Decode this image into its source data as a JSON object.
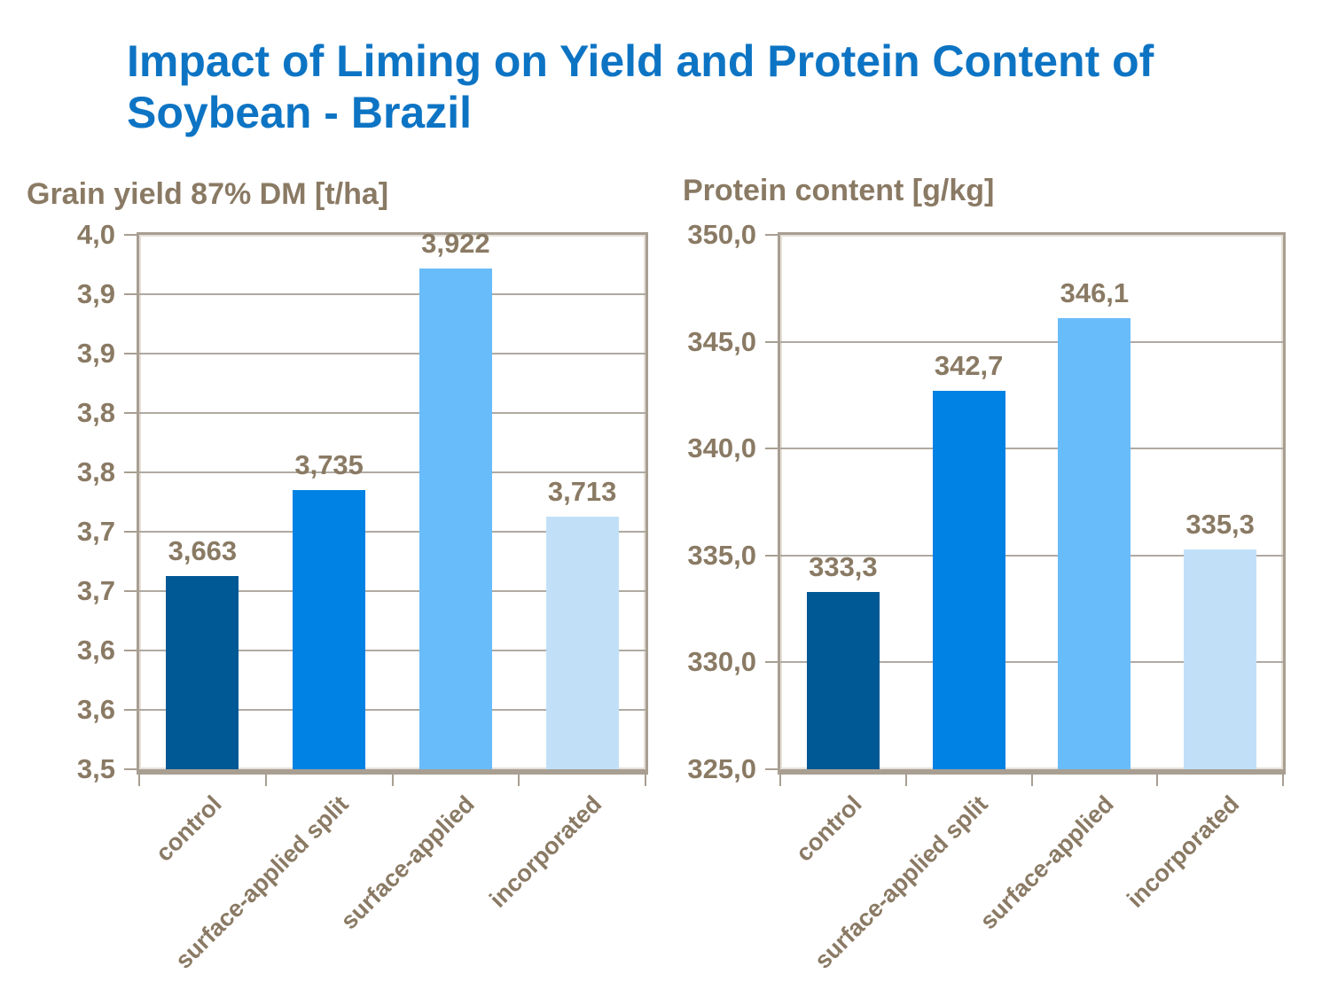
{
  "slide": {
    "title_line1": "Impact of Liming on Yield and Protein Content of",
    "title_line2": "Soybean - Brazil"
  },
  "colors": {
    "title_blue": "#0D74C4",
    "label_brown": "#8A7A64",
    "frame_tan": "#A89F92",
    "frame_highlight": "#E6E0D8",
    "gridline_gray": "#AFAAA2",
    "bar_control": "#005894",
    "bar_surface_applied_split": "#0082E4",
    "bar_surface_applied": "#69BCFA",
    "bar_incorporated": "#C1E0F8"
  },
  "chart_data": [
    {
      "type": "bar",
      "title": "Grain yield 87% DM [t/ha]",
      "categories": [
        "control",
        "surface-applied split",
        "surface-applied",
        "incorporated"
      ],
      "values": [
        3.663,
        3.735,
        3.922,
        3.713
      ],
      "value_labels": [
        "3,663",
        "3,735",
        "3,922",
        "3,713"
      ],
      "ylim": [
        3.5,
        3.95
      ],
      "ytick_labels_bottom_to_top": [
        "3,5",
        "3,6",
        "3,6",
        "3,7",
        "3,7",
        "3,8",
        "3,8",
        "3,9",
        "3,9",
        "4,0"
      ],
      "grid": true,
      "legend": "none",
      "bar_colors": [
        "#005894",
        "#0082E4",
        "#69BCFA",
        "#C1E0F8"
      ]
    },
    {
      "type": "bar",
      "title": "Protein content [g/kg]",
      "categories": [
        "control",
        "surface-applied split",
        "surface-applied",
        "incorporated"
      ],
      "values": [
        333.3,
        342.7,
        346.1,
        335.3
      ],
      "value_labels": [
        "333,3",
        "342,7",
        "346,1",
        "335,3"
      ],
      "ylim": [
        325.0,
        350.0
      ],
      "ytick_labels_bottom_to_top": [
        "325,0",
        "330,0",
        "335,0",
        "340,0",
        "345,0",
        "350,0"
      ],
      "grid": true,
      "legend": "none",
      "bar_colors": [
        "#005894",
        "#0082E4",
        "#69BCFA",
        "#C1E0F8"
      ]
    }
  ]
}
